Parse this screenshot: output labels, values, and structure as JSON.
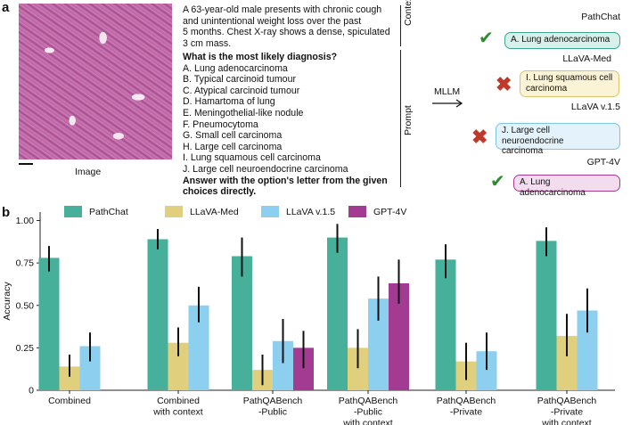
{
  "panel_a": {
    "label": "a",
    "image_caption": "Image",
    "context_lines": [
      "A  63-year-old male presents with chronic cough",
      "and unintentional weight loss over the past",
      "5 months. Chest X-ray shows a dense, spiculated",
      "3 cm mass."
    ],
    "question": "What is the most likely diagnosis?",
    "choices": [
      "A.  Lung adenocarcinoma",
      "B.  Typical carcinoid tumour",
      "C.  Atypical carcinoid tumour",
      "D.  Hamartoma of lung",
      "E.  Meningothelial-like nodule",
      "F.  Pneumocytoma",
      "G.  Small cell carcinoma",
      "H.  Large cell carcinoma",
      "I.   Lung squamous cell carcinoma",
      "J.  Large cell neuroendocrine carcinoma"
    ],
    "instruction_lines": [
      "Answer with the option's letter from the given",
      "choices directly."
    ],
    "context_label": "Context",
    "prompt_label": "Prompt",
    "mllm_label": "MLLM",
    "responses": [
      {
        "model": "PathChat",
        "answer": [
          "A. Lung adenocarcinoma"
        ],
        "correct": true,
        "fill": "#d7f0ea",
        "border": "#3ba58d"
      },
      {
        "model": "LLaVA-Med",
        "answer": [
          "I. Lung squamous cell",
          "carcinoma"
        ],
        "correct": false,
        "fill": "#fbf3d6",
        "border": "#d9c26a"
      },
      {
        "model": "LLaVA v.1.5",
        "answer": [
          "J. Large cell neuroendocrine",
          "carcinoma"
        ],
        "correct": false,
        "fill": "#e3f2fb",
        "border": "#7fc3e6"
      },
      {
        "model": "GPT-4V",
        "answer": [
          "A. Lung adenocarcinoma"
        ],
        "correct": true,
        "fill": "#f3dcee",
        "border": "#a63b91"
      }
    ],
    "check_color": "#2e8b2e",
    "cross_color": "#c0392b"
  },
  "panel_b": {
    "label": "b"
  },
  "chart_data": {
    "type": "bar",
    "ylabel": "Accuracy",
    "ylim": [
      0,
      1.05
    ],
    "yticks": [
      "0",
      "0.25",
      "0.50",
      "0.75",
      "1.00"
    ],
    "ytick_values": [
      0,
      0.25,
      0.5,
      0.75,
      1.0
    ],
    "categories": [
      [
        "Combined"
      ],
      [
        "Combined",
        "with context"
      ],
      [
        "PathQABench",
        "-Public"
      ],
      [
        "PathQABench",
        "-Public",
        "with context"
      ],
      [
        "PathQABench",
        "-Private"
      ],
      [
        "PathQABench",
        "-Private",
        "with context"
      ]
    ],
    "series": [
      {
        "name": "PathChat",
        "color": "#46b09a",
        "values": [
          0.78,
          0.89,
          0.79,
          0.9,
          0.77,
          0.88
        ],
        "errors": [
          [
            0.7,
            0.85
          ],
          [
            0.83,
            0.95
          ],
          [
            0.67,
            0.9
          ],
          [
            0.81,
            0.98
          ],
          [
            0.66,
            0.86
          ],
          [
            0.79,
            0.96
          ]
        ]
      },
      {
        "name": "LLaVA-Med",
        "color": "#e0d07e",
        "values": [
          0.14,
          0.28,
          0.12,
          0.25,
          0.17,
          0.32
        ],
        "errors": [
          [
            0.08,
            0.21
          ],
          [
            0.2,
            0.37
          ],
          [
            0.03,
            0.21
          ],
          [
            0.13,
            0.36
          ],
          [
            0.06,
            0.28
          ],
          [
            0.2,
            0.45
          ]
        ]
      },
      {
        "name": "LLaVA v.1.5",
        "color": "#8ccfee",
        "values": [
          0.26,
          0.5,
          0.29,
          0.54,
          0.23,
          0.47
        ],
        "errors": [
          [
            0.17,
            0.34
          ],
          [
            0.4,
            0.61
          ],
          [
            0.16,
            0.42
          ],
          [
            0.41,
            0.67
          ],
          [
            0.12,
            0.34
          ],
          [
            0.34,
            0.6
          ]
        ]
      },
      {
        "name": "GPT-4V",
        "color": "#a43b93",
        "values": [
          null,
          null,
          0.25,
          0.63,
          null,
          null
        ],
        "errors": [
          null,
          null,
          [
            0.13,
            0.35
          ],
          [
            0.51,
            0.77
          ],
          null,
          null
        ]
      }
    ],
    "legend_position": "top"
  }
}
